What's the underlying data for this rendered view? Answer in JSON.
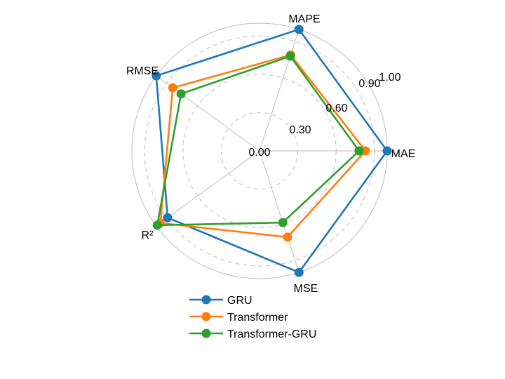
{
  "chart_data": {
    "type": "radar",
    "title": "",
    "axes": [
      "MAE",
      "MAPE",
      "RMSE",
      "R²",
      "MSE"
    ],
    "radial_ticks": [
      0.0,
      0.3,
      0.6,
      0.9,
      1.0
    ],
    "radial_tick_labels": [
      "0.00",
      "0.30",
      "0.60",
      "0.90",
      "1.00"
    ],
    "rlim": [
      0,
      1.0
    ],
    "grid": true,
    "legend_position": "lower center",
    "series": [
      {
        "name": "GRU",
        "color": "#1f77b4",
        "values": [
          1.0,
          1.0,
          1.0,
          0.89,
          1.0
        ]
      },
      {
        "name": "Transformer",
        "color": "#ff7f0e",
        "values": [
          0.83,
          0.79,
          0.84,
          0.96,
          0.71
        ]
      },
      {
        "name": "Transformer-GRU",
        "color": "#2ca02c",
        "values": [
          0.78,
          0.78,
          0.76,
          0.99,
          0.59
        ]
      }
    ]
  },
  "legend": {
    "items": [
      {
        "label": "GRU",
        "color": "#1f77b4"
      },
      {
        "label": "Transformer",
        "color": "#ff7f0e"
      },
      {
        "label": "Transformer-GRU",
        "color": "#2ca02c"
      }
    ]
  }
}
